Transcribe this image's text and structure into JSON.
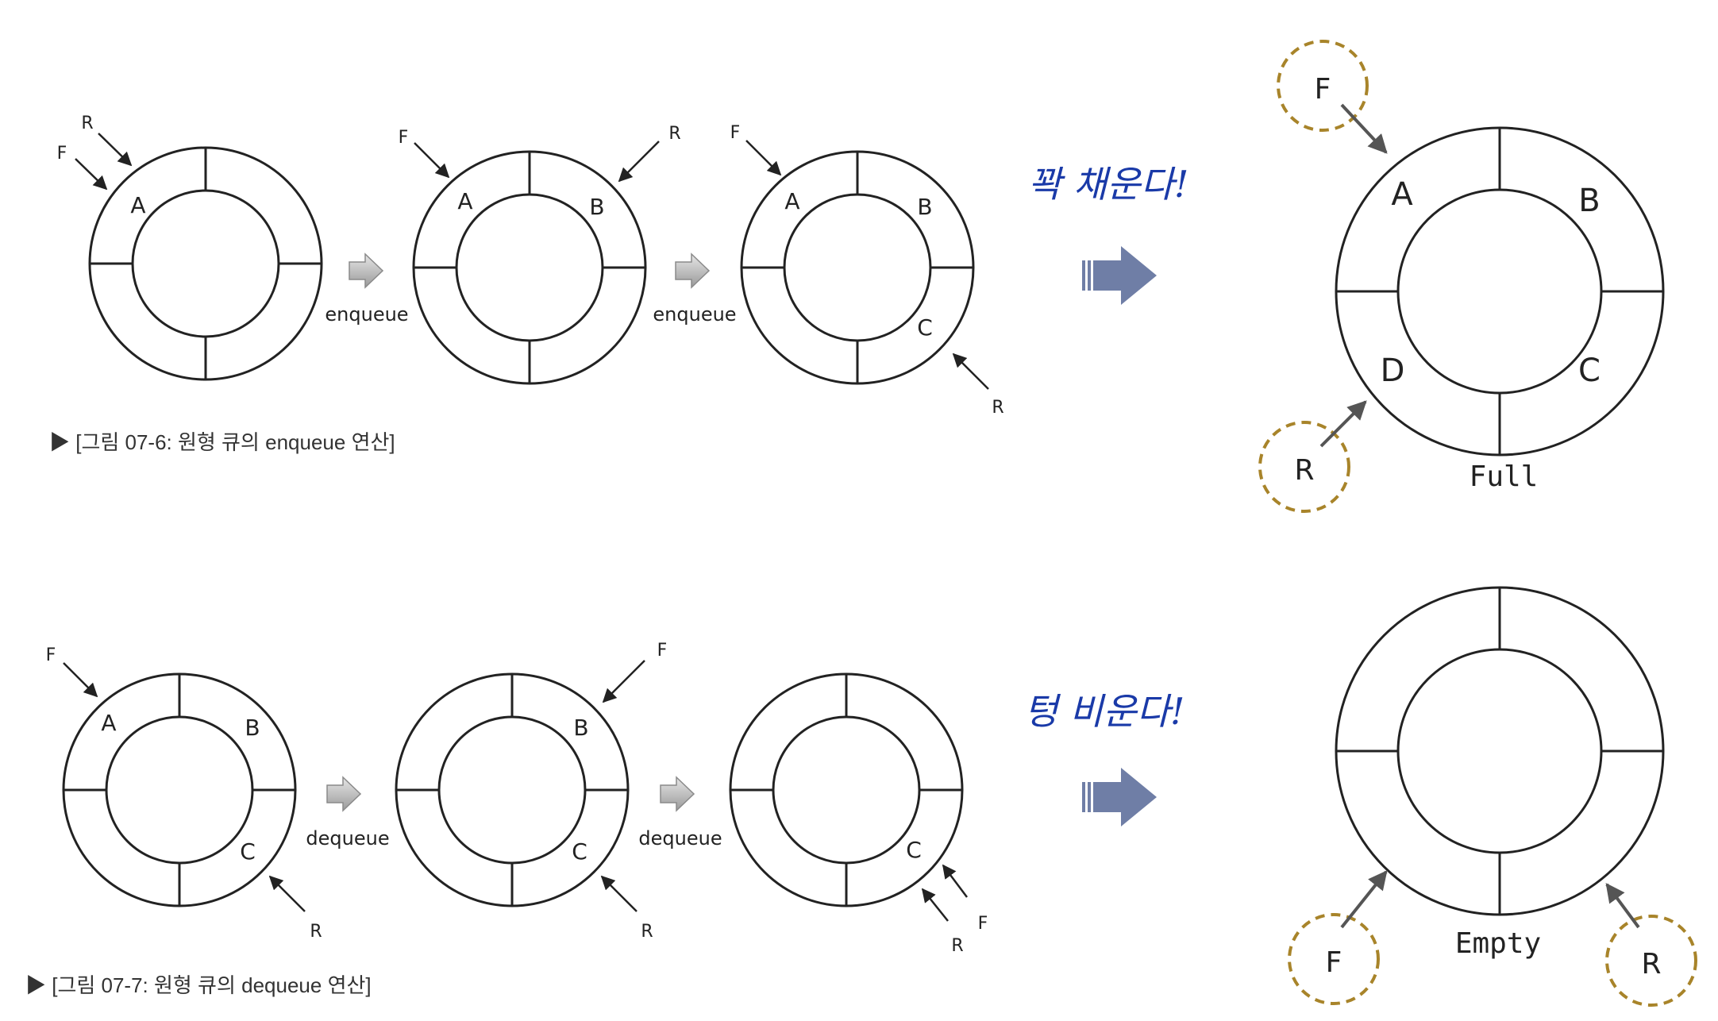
{
  "top_row": {
    "caption": "▶ [그림 07-6: 원형 큐의 enqueue 연산]",
    "op_label": "enqueue",
    "diagrams": [
      {
        "slots": [
          "A",
          "",
          "",
          ""
        ],
        "pointers": [
          "F",
          "R"
        ]
      },
      {
        "slots": [
          "A",
          "B",
          "",
          ""
        ],
        "pointers": [
          "F",
          "R"
        ]
      },
      {
        "slots": [
          "A",
          "B",
          "C",
          ""
        ],
        "pointers": [
          "F",
          "R"
        ]
      }
    ]
  },
  "bottom_row": {
    "caption": "▶ [그림 07-7: 원형 큐의 dequeue 연산]",
    "op_label": "dequeue",
    "diagrams": [
      {
        "slots": [
          "A",
          "B",
          "C",
          ""
        ],
        "pointers": [
          "F",
          "R"
        ]
      },
      {
        "slots": [
          "",
          "B",
          "C",
          ""
        ],
        "pointers": [
          "F",
          "R"
        ]
      },
      {
        "slots": [
          "",
          "",
          "C",
          ""
        ],
        "pointers": [
          "F",
          "R"
        ]
      }
    ]
  },
  "full_note": "꽉 채운다!",
  "empty_note": "텅 비운다!",
  "full_state": {
    "label": "Full",
    "slots": [
      "A",
      "B",
      "C",
      "D"
    ],
    "front": "F",
    "rear": "R"
  },
  "empty_state": {
    "label": "Empty",
    "front": "F",
    "rear": "R"
  },
  "colors": {
    "line": "#222222",
    "arrow_gray": "#bdbdbd",
    "big_arrow": "#6f7ea6",
    "dashed_ring": "#a8842a",
    "pointer_gray": "#555555",
    "handwriting": "#1a3aa8"
  }
}
